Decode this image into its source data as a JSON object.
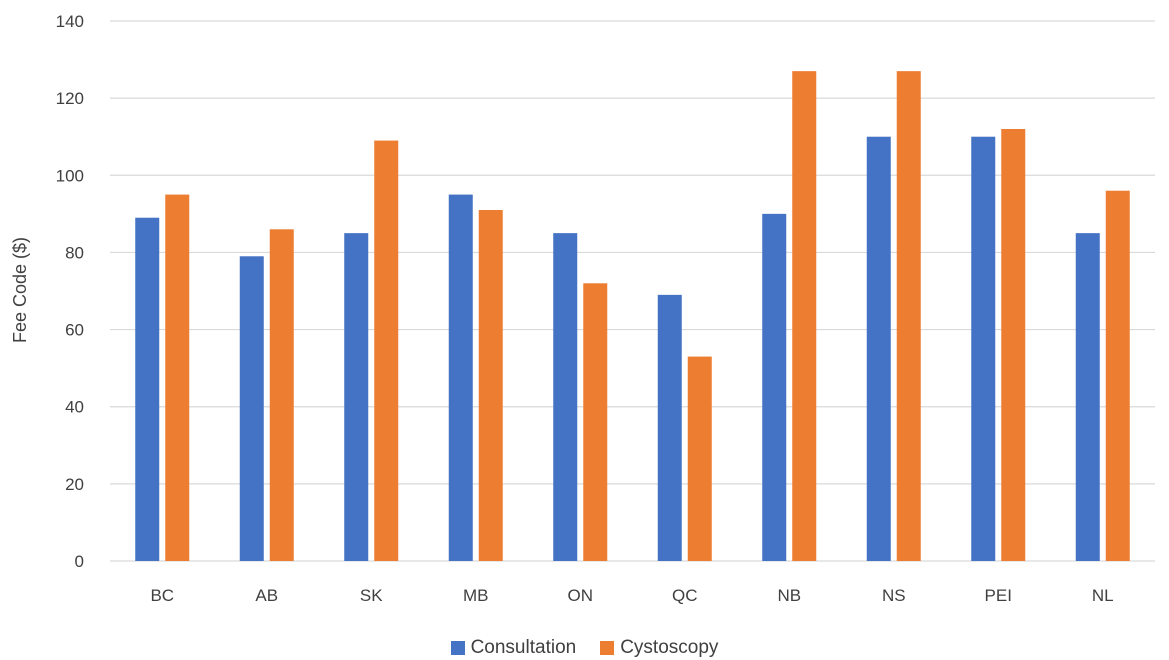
{
  "chart_data": {
    "type": "bar",
    "categories": [
      "BC",
      "AB",
      "SK",
      "MB",
      "ON",
      "QC",
      "NB",
      "NS",
      "PEI",
      "NL"
    ],
    "series": [
      {
        "name": "Consultation",
        "color": "#4472C4",
        "values": [
          89,
          79,
          85,
          95,
          85,
          69,
          90,
          110,
          110,
          85
        ]
      },
      {
        "name": "Cystoscopy",
        "color": "#ED7D31",
        "values": [
          95,
          86,
          109,
          91,
          72,
          53,
          127,
          127,
          112,
          96
        ]
      }
    ],
    "ylabel": "Fee Code ($)",
    "xlabel": "",
    "ylim": [
      0,
      140
    ],
    "yticks": [
      0,
      20,
      40,
      60,
      80,
      100,
      120,
      140
    ],
    "grid": true,
    "legend_position": "bottom"
  }
}
